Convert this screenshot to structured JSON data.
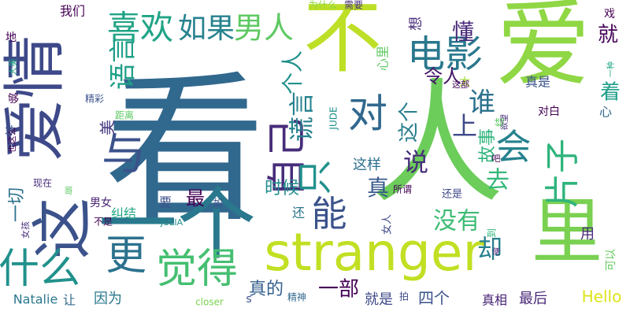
{
  "word_cloud": {
    "background": "#ffffff",
    "words": [
      {
        "text": "看",
        "color": "#31688e"
      },
      {
        "text": "爱",
        "color": "#8fd744"
      },
      {
        "text": "不",
        "color": "#bddf26"
      },
      {
        "text": "人",
        "color": "#6ccd5a"
      },
      {
        "text": "里",
        "color": "#7ad151"
      },
      {
        "text": "一个",
        "color": "#2a788e"
      },
      {
        "text": "爱情",
        "color": "#3e4989"
      },
      {
        "text": "stranger",
        "color": "#c2df23"
      },
      {
        "text": "电影",
        "color": "#2a788e"
      },
      {
        "text": "与",
        "color": "#3b528b"
      },
      {
        "text": "这",
        "color": "#3b528b"
      },
      {
        "text": "更",
        "color": "#2c728e"
      },
      {
        "text": "觉得",
        "color": "#44bf70"
      },
      {
        "text": "什么",
        "color": "#21918c"
      },
      {
        "text": "自己",
        "color": "#472d7b"
      },
      {
        "text": "对",
        "color": "#31688e"
      },
      {
        "text": "喜欢",
        "color": "#20a486"
      },
      {
        "text": "如果",
        "color": "#26828e"
      },
      {
        "text": "男人",
        "color": "#5ec962"
      },
      {
        "text": "片子",
        "color": "#2fb47c"
      },
      {
        "text": "会",
        "color": "#26828e"
      },
      {
        "text": "只",
        "color": "#21918c"
      },
      {
        "text": "能",
        "color": "#3b528b"
      },
      {
        "text": "语言",
        "color": "#1fa088"
      },
      {
        "text": "谎言",
        "color": "#26828e"
      },
      {
        "text": "个人",
        "color": "#21918c"
      },
      {
        "text": "谁",
        "color": "#2c728e"
      },
      {
        "text": "上",
        "color": "#3e4989"
      },
      {
        "text": "说",
        "color": "#472d7b"
      },
      {
        "text": "懂",
        "color": "#482878"
      },
      {
        "text": "就",
        "color": "#440154"
      },
      {
        "text": "着",
        "color": "#1f9e89"
      },
      {
        "text": "去",
        "color": "#35b779"
      },
      {
        "text": "却",
        "color": "#27808e"
      },
      {
        "text": "没有",
        "color": "#3dbc74"
      },
      {
        "text": "真",
        "color": "#38598c"
      },
      {
        "text": "这个",
        "color": "#287d8e"
      },
      {
        "text": "故事",
        "color": "#2eb37c"
      },
      {
        "text": "这样",
        "color": "#2d708e"
      },
      {
        "text": "时候",
        "color": "#228d8d"
      },
      {
        "text": "最",
        "color": "#440154"
      },
      {
        "text": "令人",
        "color": "#481769"
      },
      {
        "text": "美",
        "color": "#453781"
      },
      {
        "text": "一切",
        "color": "#2c728e"
      },
      {
        "text": "一部",
        "color": "#440154"
      },
      {
        "text": "真的",
        "color": "#355f8d"
      },
      {
        "text": "四个",
        "color": "#3b528b"
      },
      {
        "text": "Hello",
        "color": "#dde318"
      },
      {
        "text": "Natalie",
        "color": "#2a788e"
      },
      {
        "text": "因为",
        "color": "#2a788e"
      },
      {
        "text": "让",
        "color": "#31688e"
      },
      {
        "text": "就是",
        "color": "#3e4989"
      },
      {
        "text": "最后",
        "color": "#482878"
      },
      {
        "text": "真相",
        "color": "#482475"
      },
      {
        "text": "用",
        "color": "#482878"
      },
      {
        "text": "可以",
        "color": "#65cb5e"
      },
      {
        "text": "纠结",
        "color": "#22a785"
      },
      {
        "text": "要",
        "color": "#3b528b"
      },
      {
        "text": "男女",
        "color": "#482475"
      },
      {
        "text": "我们",
        "color": "#440154"
      },
      {
        "text": "想",
        "color": "#472d7b"
      },
      {
        "text": "太",
        "color": "#a2da37"
      },
      {
        "text": "真是",
        "color": "#3b528b"
      },
      {
        "text": "戏",
        "color": "#440154"
      },
      {
        "text": "对白",
        "color": "#440154"
      },
      {
        "text": "心",
        "color": "#31688e"
      },
      {
        "text": "心里",
        "color": "#5ec962"
      },
      {
        "text": "为什么",
        "color": "#8fd744"
      },
      {
        "text": "需要",
        "color": "#472d7b"
      },
      {
        "text": "这部",
        "color": "#440154"
      },
      {
        "text": "一种",
        "color": "#20a486"
      },
      {
        "text": "地",
        "color": "#440154"
      },
      {
        "text": "大美",
        "color": "#20a486"
      },
      {
        "text": "精彩",
        "color": "#3b528b"
      },
      {
        "text": "够",
        "color": "#440154"
      },
      {
        "text": "距离",
        "color": "#5ec962"
      },
      {
        "text": "女人",
        "color": "#3e4989"
      },
      {
        "text": "还",
        "color": "#2c728e"
      },
      {
        "text": "还是",
        "color": "#3e4989"
      },
      {
        "text": "所谓",
        "color": "#440154"
      },
      {
        "text": "欲望",
        "color": "#472d7b"
      },
      {
        "text": "到",
        "color": "#2fb47c"
      },
      {
        "text": "便",
        "color": "#482475"
      },
      {
        "text": "吧",
        "color": "#440154"
      },
      {
        "text": "现在",
        "color": "#472d7b"
      },
      {
        "text": "哥",
        "color": "#5ec962"
      },
      {
        "text": "才",
        "color": "#3b528b"
      },
      {
        "text": "也这么",
        "color": "#440154"
      },
      {
        "text": "女孩",
        "color": "#472d7b"
      },
      {
        "text": "不是",
        "color": "#440154"
      },
      {
        "text": "如",
        "color": "#3b528b"
      },
      {
        "text": "JULIA",
        "color": "#21918c"
      },
      {
        "text": "JUDE",
        "color": "#21918c"
      },
      {
        "text": "closer",
        "color": "#7ad151"
      },
      {
        "text": "s",
        "color": "#3b528b"
      },
      {
        "text": "精神",
        "color": "#31688e"
      },
      {
        "text": "拍",
        "color": "#3e4989"
      },
      {
        "text": "结",
        "color": "#5ec962"
      }
    ]
  }
}
